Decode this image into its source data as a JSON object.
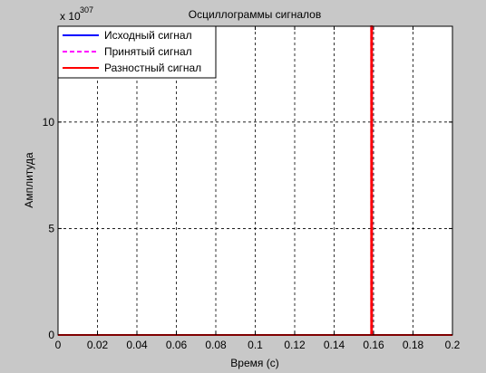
{
  "chart_data": {
    "type": "line",
    "title": "Осциллограммы сигналов",
    "xlabel": "Время (с)",
    "ylabel": "Амплитуда",
    "y_multiplier_base": "x 10",
    "y_multiplier_exp": "307",
    "xlim": [
      0,
      0.2
    ],
    "ylim": [
      0,
      14.5
    ],
    "x_ticks": [
      0,
      0.02,
      0.04,
      0.06,
      0.08,
      0.1,
      0.12,
      0.14,
      0.16,
      0.18,
      0.2
    ],
    "x_tick_labels": [
      "0",
      "0.02",
      "0.04",
      "0.06",
      "0.08",
      "0.1",
      "0.12",
      "0.14",
      "0.16",
      "0.18",
      "0.2"
    ],
    "y_ticks": [
      0,
      5,
      10
    ],
    "y_tick_labels": [
      "0",
      "5",
      "10"
    ],
    "grid": true,
    "legend_position": "top-left",
    "series": [
      {
        "name": "Исходный сигнал",
        "color": "#0000ff",
        "dash": "solid",
        "x": [
          0,
          0.2
        ],
        "y": [
          0,
          0
        ]
      },
      {
        "name": "Принятый сигнал",
        "color": "#ff00ff",
        "dash": "dashed",
        "x": [
          0,
          0.1588,
          0.1588,
          0.1592,
          0.1592,
          0.2
        ],
        "y": [
          0,
          0,
          14.5,
          14.5,
          0,
          0
        ]
      },
      {
        "name": "Разностный сигнал",
        "color": "#ff0000",
        "dash": "solid",
        "x": [
          0,
          0.1588,
          0.1588,
          0.1592,
          0.1592,
          0.2
        ],
        "y": [
          0,
          0,
          14.5,
          14.5,
          0,
          0
        ]
      }
    ]
  }
}
